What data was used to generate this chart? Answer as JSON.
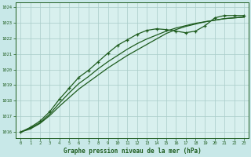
{
  "title": "Graphe pression niveau de la mer (hPa)",
  "bg_color": "#c8e8e8",
  "plot_bg_color": "#d8f0ee",
  "line_color": "#1e5c1e",
  "grid_color": "#a8ccc8",
  "xlim": [
    -0.5,
    23.5
  ],
  "ylim": [
    1015.6,
    1024.3
  ],
  "yticks": [
    1016,
    1017,
    1018,
    1019,
    1020,
    1021,
    1022,
    1023,
    1024
  ],
  "xticks": [
    0,
    1,
    2,
    3,
    4,
    5,
    6,
    7,
    8,
    9,
    10,
    11,
    12,
    13,
    14,
    15,
    16,
    17,
    18,
    19,
    20,
    21,
    22,
    23
  ],
  "series1_x": [
    0,
    1,
    2,
    3,
    4,
    5,
    6,
    7,
    8,
    9,
    10,
    11,
    12,
    13,
    14,
    15,
    16,
    17,
    18,
    19,
    20,
    21,
    22,
    23
  ],
  "series1_y": [
    1016.0,
    1016.25,
    1016.6,
    1017.15,
    1017.85,
    1018.5,
    1019.1,
    1019.55,
    1020.05,
    1020.5,
    1020.9,
    1021.3,
    1021.65,
    1021.95,
    1022.2,
    1022.45,
    1022.65,
    1022.8,
    1022.95,
    1023.05,
    1023.15,
    1023.25,
    1023.3,
    1023.35
  ],
  "series2_x": [
    0,
    1,
    2,
    3,
    4,
    5,
    6,
    7,
    8,
    9,
    10,
    11,
    12,
    13,
    14,
    15,
    16,
    17,
    18,
    19,
    20,
    21,
    22,
    23
  ],
  "series2_y": [
    1016.0,
    1016.2,
    1016.55,
    1017.05,
    1017.65,
    1018.2,
    1018.75,
    1019.2,
    1019.65,
    1020.1,
    1020.5,
    1020.9,
    1021.25,
    1021.6,
    1021.95,
    1022.3,
    1022.55,
    1022.75,
    1022.9,
    1023.05,
    1023.15,
    1023.25,
    1023.3,
    1023.35
  ],
  "series3_x": [
    0,
    1,
    2,
    3,
    4,
    5,
    6,
    7,
    8,
    9,
    10,
    11,
    12,
    13,
    14,
    15,
    16,
    17,
    18,
    19,
    20,
    21,
    22,
    23
  ],
  "series3_y": [
    1016.0,
    1016.3,
    1016.7,
    1017.3,
    1018.1,
    1018.8,
    1019.5,
    1019.95,
    1020.5,
    1021.05,
    1021.55,
    1021.9,
    1022.25,
    1022.5,
    1022.6,
    1022.55,
    1022.45,
    1022.35,
    1022.45,
    1022.8,
    1023.3,
    1023.45,
    1023.45,
    1023.45
  ]
}
